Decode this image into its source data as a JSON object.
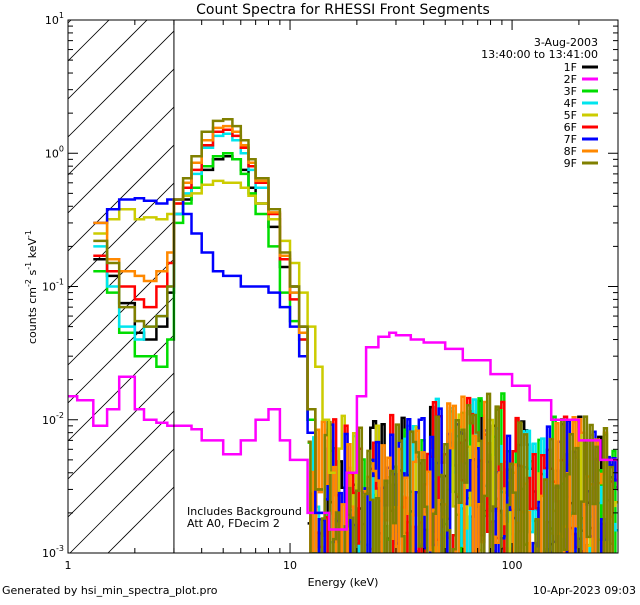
{
  "chart_data": {
    "type": "line",
    "title": "Count Spectra for RHESSI Front Segments",
    "xlabel": "Energy (keV)",
    "ylabel": "counts cm-2 s-1 keV-1",
    "ylabel_parts": {
      "base": "counts cm",
      "e1": "-2",
      "s": " s",
      "e2": "-1",
      "kev": " keV",
      "e3": "-1"
    },
    "xscale": "log",
    "yscale": "log",
    "xlim": [
      1,
      300
    ],
    "ylim": [
      0.001,
      10
    ],
    "x_ticks": [
      {
        "value": 1,
        "label": "1"
      },
      {
        "value": 10,
        "label": "10"
      },
      {
        "value": 100,
        "label": "100"
      }
    ],
    "y_ticks": [
      {
        "value": 0.001,
        "base": "10",
        "exp": "-3"
      },
      {
        "value": 0.01,
        "base": "10",
        "exp": "-2"
      },
      {
        "value": 0.1,
        "base": "10",
        "exp": "-1"
      },
      {
        "value": 1,
        "base": "10",
        "exp": "0"
      },
      {
        "value": 10,
        "base": "10",
        "exp": "1"
      }
    ],
    "date": "3-Aug-2003",
    "time_range": "13:40:00 to 13:41:00",
    "hatched_region_x": [
      1,
      3
    ],
    "annotations": [
      "Includes Background",
      "Att A0, FDecim 2"
    ],
    "series": [
      {
        "name": "1F",
        "color": "#000000",
        "x": [
          1.3,
          1.5,
          1.7,
          2.0,
          2.2,
          2.5,
          2.8,
          3.0,
          3.3,
          3.6,
          4.0,
          4.5,
          5.0,
          5.5,
          6.0,
          6.5,
          7.0,
          8.0,
          9.0,
          10,
          11,
          12,
          13
        ],
        "y": [
          0.16,
          0.12,
          0.075,
          0.045,
          0.04,
          0.05,
          0.09,
          0.35,
          0.45,
          0.55,
          0.75,
          0.9,
          0.95,
          0.9,
          0.75,
          0.55,
          0.42,
          0.28,
          0.14,
          0.1,
          0.05,
          0.01,
          0.003
        ]
      },
      {
        "name": "2F",
        "color": "#ff00ff",
        "x": [
          1.0,
          1.1,
          1.3,
          1.5,
          1.7,
          2.0,
          2.2,
          2.5,
          2.8,
          3.2,
          3.6,
          4.0,
          5.0,
          6.0,
          7.0,
          8.0,
          9.0,
          10,
          12,
          15,
          18,
          20,
          22,
          25,
          28,
          30,
          35,
          40,
          50,
          60,
          80,
          100,
          120,
          150,
          200,
          250,
          300
        ],
        "y": [
          0.015,
          0.014,
          0.009,
          0.012,
          0.021,
          0.012,
          0.01,
          0.0095,
          0.009,
          0.009,
          0.0085,
          0.007,
          0.0055,
          0.007,
          0.01,
          0.012,
          0.007,
          0.005,
          0.002,
          0.0015,
          0.004,
          0.015,
          0.035,
          0.042,
          0.045,
          0.043,
          0.04,
          0.038,
          0.034,
          0.028,
          0.022,
          0.018,
          0.014,
          0.01,
          0.007,
          0.005,
          0.003
        ]
      },
      {
        "name": "3F",
        "color": "#00dd00",
        "x": [
          1.3,
          1.5,
          1.7,
          2.0,
          2.2,
          2.5,
          2.8,
          3.0,
          3.3,
          3.6,
          4.0,
          4.5,
          5.0,
          5.5,
          6.0,
          6.5,
          7.0,
          8.0,
          9.0,
          10,
          11,
          12,
          13
        ],
        "y": [
          0.13,
          0.09,
          0.045,
          0.03,
          0.03,
          0.025,
          0.04,
          0.3,
          0.42,
          0.55,
          0.8,
          0.95,
          1.0,
          0.9,
          0.7,
          0.5,
          0.35,
          0.2,
          0.09,
          0.055,
          0.03,
          0.01,
          0.003
        ]
      },
      {
        "name": "4F",
        "color": "#00e5ee",
        "x": [
          1.3,
          1.5,
          1.7,
          2.0,
          2.2,
          2.5,
          2.8,
          3.0,
          3.3,
          3.6,
          4.0,
          4.5,
          5.0,
          5.5,
          6.0,
          6.5,
          7.0,
          8.0,
          9.0,
          10,
          11,
          12,
          13
        ],
        "y": [
          0.2,
          0.1,
          0.05,
          0.04,
          0.05,
          0.06,
          0.1,
          0.35,
          0.5,
          0.7,
          1.1,
          1.35,
          1.4,
          1.25,
          1.0,
          0.75,
          0.55,
          0.32,
          0.16,
          0.09,
          0.04,
          0.012,
          0.003
        ]
      },
      {
        "name": "5F",
        "color": "#cccc00",
        "x": [
          1.3,
          1.5,
          1.7,
          2.0,
          2.2,
          2.5,
          2.8,
          3.0,
          3.3,
          3.6,
          4.0,
          4.5,
          5.0,
          5.5,
          6.0,
          6.5,
          7.0,
          8.0,
          9.0,
          10,
          11,
          12,
          13,
          14,
          15
        ],
        "y": [
          0.25,
          0.32,
          0.38,
          0.32,
          0.33,
          0.32,
          0.35,
          0.42,
          0.48,
          0.5,
          0.58,
          0.62,
          0.6,
          0.6,
          0.55,
          0.48,
          0.42,
          0.32,
          0.22,
          0.15,
          0.09,
          0.05,
          0.025,
          0.01,
          0.004
        ]
      },
      {
        "name": "6F",
        "color": "#ff0000",
        "x": [
          1.3,
          1.5,
          1.7,
          2.0,
          2.2,
          2.5,
          2.8,
          3.0,
          3.3,
          3.6,
          4.0,
          4.5,
          5.0,
          5.5,
          6.0,
          6.5,
          7.0,
          8.0,
          9.0,
          10,
          11,
          12,
          13
        ],
        "y": [
          0.17,
          0.13,
          0.1,
          0.08,
          0.07,
          0.1,
          0.15,
          0.42,
          0.55,
          0.75,
          1.15,
          1.45,
          1.5,
          1.35,
          1.1,
          0.8,
          0.6,
          0.35,
          0.16,
          0.08,
          0.04,
          0.012,
          0.003
        ]
      },
      {
        "name": "7F",
        "color": "#0000ff",
        "x": [
          1.3,
          1.5,
          1.7,
          2.0,
          2.2,
          2.5,
          2.8,
          3.0,
          3.3,
          3.6,
          4.0,
          4.5,
          5.0,
          5.5,
          6.0,
          6.5,
          7.0,
          8.0,
          9.0,
          10,
          11,
          12,
          13
        ],
        "y": [
          0.3,
          0.38,
          0.45,
          0.46,
          0.44,
          0.42,
          0.45,
          0.45,
          0.35,
          0.25,
          0.18,
          0.13,
          0.12,
          0.12,
          0.1,
          0.1,
          0.1,
          0.09,
          0.07,
          0.05,
          0.03,
          0.008,
          0.002
        ]
      },
      {
        "name": "8F",
        "color": "#ff8800",
        "x": [
          1.3,
          1.5,
          1.7,
          2.0,
          2.2,
          2.5,
          2.8,
          3.0,
          3.3,
          3.6,
          4.0,
          4.5,
          5.0,
          5.5,
          6.0,
          6.5,
          7.0,
          8.0,
          9.0,
          10,
          11,
          12,
          13
        ],
        "y": [
          0.3,
          0.16,
          0.13,
          0.12,
          0.11,
          0.13,
          0.18,
          0.45,
          0.6,
          0.85,
          1.25,
          1.55,
          1.6,
          1.45,
          1.15,
          0.85,
          0.62,
          0.36,
          0.17,
          0.09,
          0.045,
          0.012,
          0.003
        ]
      },
      {
        "name": "9F",
        "color": "#808000",
        "x": [
          1.3,
          1.5,
          1.7,
          2.0,
          2.2,
          2.5,
          2.8,
          3.0,
          3.3,
          3.6,
          4.0,
          4.5,
          5.0,
          5.5,
          6.0,
          6.5,
          7.0,
          8.0,
          9.0,
          10,
          11,
          12,
          13
        ],
        "y": [
          0.22,
          0.15,
          0.07,
          0.055,
          0.05,
          0.06,
          0.1,
          0.45,
          0.65,
          0.95,
          1.45,
          1.75,
          1.8,
          1.6,
          1.25,
          0.9,
          0.65,
          0.38,
          0.18,
          0.1,
          0.05,
          0.012,
          0.003
        ]
      }
    ]
  },
  "footer": {
    "generator": "Generated by hsi_min_spectra_plot.pro",
    "timestamp": "10-Apr-2023 09:03"
  }
}
